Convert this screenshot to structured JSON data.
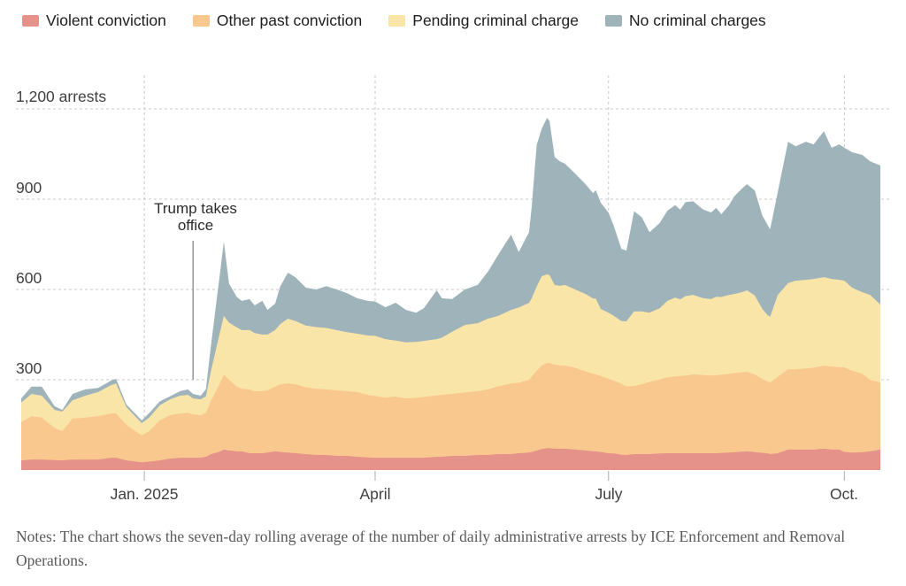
{
  "legend": {
    "note": "labels mirror chart_data.series"
  },
  "ui": {
    "annotation_text": "Trump takes\noffice",
    "notes_text": "Notes: The chart shows the seven-day rolling average of the number of daily administrative arrests by ICE Enforcement and Removal Operations."
  },
  "chart_data": {
    "type": "area",
    "stacked": true,
    "title": "",
    "xlabel": "",
    "ylabel": "arrests",
    "ylim": [
      0,
      1260
    ],
    "grid": "dashed",
    "legend_position": "top",
    "gridline_color": "#c9c9c9",
    "tick_color": "#b8b8b8",
    "annotation": {
      "text": "Trump takes office",
      "day": 67,
      "line_color": "#8f8f8f"
    },
    "x_unit": "days since 2024-11-14",
    "x_domain": [
      0,
      335
    ],
    "xticks": [
      {
        "label": "Jan. 2025",
        "day": 48
      },
      {
        "label": "April",
        "day": 138
      },
      {
        "label": "July",
        "day": 229
      },
      {
        "label": "Oct.",
        "day": 321
      }
    ],
    "yticks": [
      {
        "label": "1,200 arrests",
        "value": 1200
      },
      {
        "label": "900",
        "value": 900
      },
      {
        "label": "600",
        "value": 600
      },
      {
        "label": "300",
        "value": 300
      }
    ],
    "days": [
      0,
      4,
      8,
      13,
      16,
      20,
      25,
      30,
      35,
      37,
      41,
      47,
      50,
      54,
      58,
      62,
      65,
      67,
      70,
      72,
      74,
      77,
      79,
      81,
      84,
      86,
      89,
      91,
      94,
      96,
      99,
      101,
      104,
      107,
      111,
      115,
      119,
      123,
      127,
      131,
      135,
      138,
      142,
      146,
      150,
      154,
      157,
      162,
      164,
      168,
      173,
      178,
      182,
      186,
      191,
      194,
      198,
      199,
      201,
      203,
      205,
      206,
      208,
      210,
      212,
      216,
      220,
      223,
      224,
      226,
      229,
      231,
      234,
      236,
      239,
      242,
      245,
      249,
      252,
      255,
      257,
      259,
      262,
      266,
      269,
      271,
      273,
      276,
      278,
      281,
      283,
      286,
      289,
      291,
      292,
      295,
      299,
      302,
      306,
      309,
      313,
      316,
      319,
      321,
      324,
      328,
      331,
      335
    ],
    "series": [
      {
        "name": "Violent conviction",
        "color": "#E5928B",
        "values": [
          32,
          35,
          35,
          33,
          32,
          35,
          35,
          35,
          41,
          41,
          32,
          26,
          28,
          32,
          38,
          41,
          41,
          41,
          41,
          44,
          53,
          60,
          68,
          65,
          62,
          62,
          56,
          56,
          56,
          58,
          62,
          60,
          58,
          56,
          53,
          50,
          50,
          47,
          47,
          44,
          42,
          41,
          41,
          41,
          41,
          41,
          41,
          44,
          44,
          47,
          47,
          50,
          50,
          53,
          53,
          56,
          58,
          60,
          65,
          70,
          73,
          73,
          71,
          71,
          71,
          68,
          65,
          62,
          62,
          60,
          56,
          55,
          51,
          50,
          53,
          53,
          53,
          55,
          56,
          56,
          56,
          56,
          56,
          56,
          56,
          56,
          57,
          58,
          59,
          61,
          62,
          60,
          57,
          56,
          53,
          56,
          68,
          68,
          68,
          68,
          71,
          68,
          68,
          60,
          58,
          59,
          62,
          68
        ]
      },
      {
        "name": "Other past conviction",
        "color": "#F9C88E",
        "values": [
          127,
          144,
          139,
          107,
          97,
          136,
          139,
          144,
          147,
          147,
          118,
          89,
          102,
          133,
          144,
          147,
          149,
          144,
          141,
          146,
          177,
          220,
          250,
          235,
          215,
          208,
          212,
          206,
          206,
          207,
          215,
          225,
          230,
          229,
          222,
          220,
          218,
          218,
          215,
          215,
          208,
          205,
          200,
          203,
          197,
          199,
          202,
          204,
          206,
          206,
          211,
          212,
          218,
          225,
          235,
          234,
          242,
          250,
          265,
          277,
          283,
          283,
          279,
          277,
          276,
          272,
          263,
          258,
          256,
          252,
          247,
          243,
          236,
          228,
          226,
          232,
          240,
          246,
          252,
          255,
          257,
          258,
          262,
          260,
          258,
          259,
          260,
          262,
          263,
          264,
          264,
          258,
          245,
          239,
          238,
          254,
          267,
          267,
          270,
          272,
          276,
          276,
          274,
          281,
          272,
          261,
          238,
          223
        ]
      },
      {
        "name": "Pending criminal charge",
        "color": "#FAE5A9",
        "values": [
          65,
          74,
          73,
          60,
          65,
          61,
          73,
          80,
          94,
          100,
          59,
          41,
          45,
          50,
          53,
          59,
          60,
          53,
          53,
          55,
          100,
          160,
          194,
          190,
          197,
          195,
          197,
          193,
          188,
          185,
          188,
          200,
          215,
          210,
          205,
          205,
          204,
          200,
          196,
          194,
          197,
          200,
          194,
          186,
          186,
          186,
          186,
          187,
          190,
          206,
          224,
          226,
          235,
          234,
          244,
          250,
          255,
          260,
          280,
          297,
          294,
          292,
          265,
          264,
          268,
          260,
          257,
          250,
          252,
          223,
          220,
          215,
          208,
          216,
          248,
          242,
          230,
          237,
          254,
          262,
          254,
          264,
          264,
          255,
          254,
          261,
          258,
          262,
          263,
          266,
          271,
          262,
          233,
          220,
          218,
          272,
          286,
          294,
          294,
          295,
          294,
          291,
          290,
          288,
          276,
          271,
          282,
          259
        ]
      },
      {
        "name": "No criminal charges",
        "color": "#9FB3BA",
        "values": [
          14,
          24,
          30,
          12,
          6,
          21,
          21,
          14,
          15,
          15,
          9,
          9,
          15,
          13,
          10,
          15,
          18,
          15,
          12,
          23,
          85,
          180,
          247,
          130,
          102,
          97,
          103,
          92,
          112,
          82,
          88,
          125,
          153,
          145,
          126,
          125,
          139,
          135,
          130,
          118,
          115,
          114,
          106,
          126,
          108,
          97,
          109,
          162,
          131,
          109,
          118,
          127,
          156,
          203,
          250,
          184,
          235,
          300,
          470,
          491,
          520,
          512,
          425,
          414,
          403,
          385,
          365,
          350,
          360,
          353,
          332,
          299,
          240,
          235,
          333,
          313,
          267,
          283,
          300,
          307,
          298,
          312,
          311,
          294,
          288,
          295,
          275,
          298,
          324,
          344,
          353,
          349,
          310,
          300,
          291,
          342,
          470,
          447,
          459,
          447,
          485,
          436,
          450,
          442,
          450,
          456,
          444,
          462
        ]
      }
    ]
  }
}
